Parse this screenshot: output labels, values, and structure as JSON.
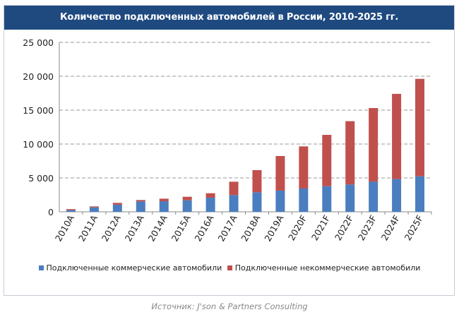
{
  "chart_data": {
    "type": "bar",
    "stacked": true,
    "title": "Количество подключенных  автомобилей в России, 2010-2025  гг.",
    "categories": [
      "2010A",
      "2011A",
      "2012A",
      "2013A",
      "2014A",
      "2015A",
      "2016A",
      "2017A",
      "2018A",
      "2019A",
      "2020F",
      "2021F",
      "2022F",
      "2023F",
      "2024F",
      "2025F"
    ],
    "series": [
      {
        "name": "Подключенные коммерческие автомобили",
        "color": "#4a7ebf",
        "values": [
          250,
          650,
          1050,
          1530,
          1560,
          1700,
          2080,
          2470,
          2880,
          3130,
          3440,
          3780,
          4030,
          4440,
          4830,
          5240
        ]
      },
      {
        "name": "Подключенные некоммерческие автомобили",
        "color": "#c0504d",
        "values": [
          150,
          150,
          270,
          210,
          380,
          520,
          660,
          1970,
          3270,
          5100,
          6210,
          7570,
          9340,
          10870,
          12570,
          14380
        ]
      }
    ],
    "ylim": [
      0,
      25000
    ],
    "yticks": [
      0,
      5000,
      10000,
      15000,
      20000,
      25000
    ],
    "ytick_labels": [
      "0",
      "5 000",
      "10 000",
      "15 000",
      "20 000",
      "25 000"
    ],
    "grid": true,
    "legend": "bottom",
    "xlabel": "",
    "ylabel": ""
  },
  "source": "Источник: J'son & Partners Consulting"
}
